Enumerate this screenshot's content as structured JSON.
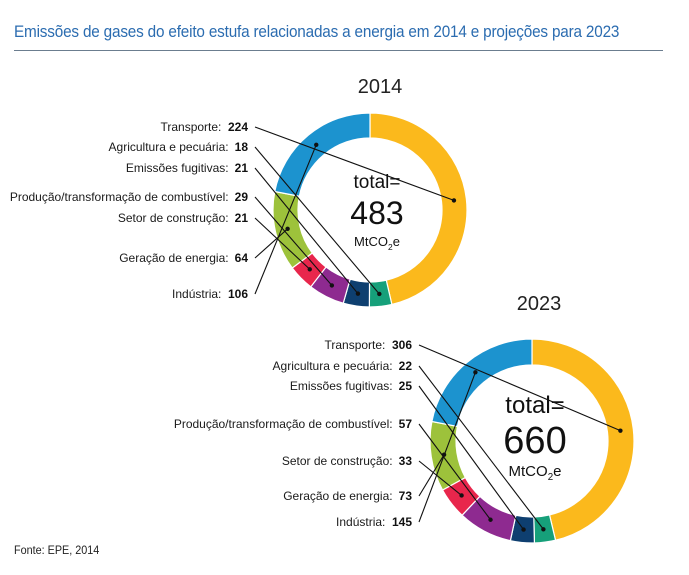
{
  "title": "Emissões de gases do efeito estufa relacionadas a energia em 2014 e projeções para 2023",
  "source": "Fonte: EPE, 2014",
  "colors": {
    "Transporte": "#fbb91c",
    "Agricultura e pecuária": "#16a07a",
    "Emissões fugitivas": "#0e3f70",
    "Produção/transformação de combustível": "#8e2a90",
    "Setor de construção": "#e8264c",
    "Geração de energia": "#9dc23b",
    "Indústria": "#1c93cf"
  },
  "chart_data": [
    {
      "type": "pie",
      "title": "2014",
      "center_label": {
        "prefix": "total=",
        "value": "483",
        "unit_main": "MtCO",
        "unit_sub": "2",
        "unit_tail": "e"
      },
      "categories": [
        "Transporte",
        "Agricultura e pecuária",
        "Emissões fugitivas",
        "Produção/transformação de combustível",
        "Setor de construção",
        "Geração de energia",
        "Indústria"
      ],
      "values": [
        224,
        18,
        21,
        29,
        21,
        64,
        106
      ]
    },
    {
      "type": "pie",
      "title": "2023",
      "center_label": {
        "prefix": "total=",
        "value": "660",
        "unit_main": "MtCO",
        "unit_sub": "2",
        "unit_tail": "e"
      },
      "categories": [
        "Transporte",
        "Agricultura e pecuária",
        "Emissões fugitivas",
        "Produção/transformação de combustível",
        "Setor de construção",
        "Geração de energia",
        "Indústria"
      ],
      "values": [
        306,
        22,
        25,
        57,
        33,
        73,
        145
      ]
    }
  ]
}
